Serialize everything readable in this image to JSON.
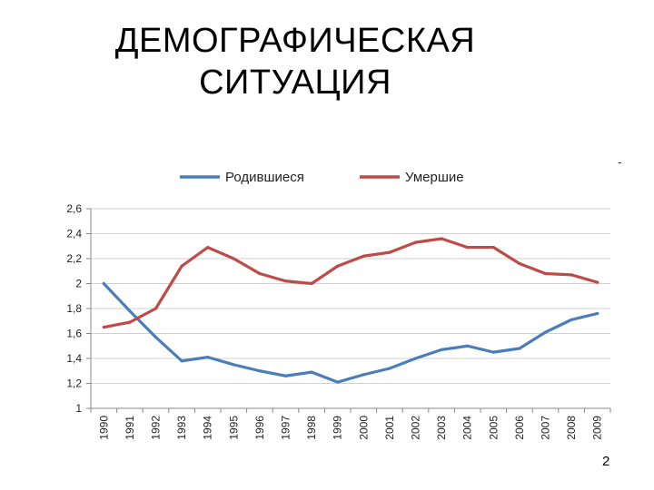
{
  "slide": {
    "title_line1": "ДЕМОГРАФИЧЕСКАЯ",
    "title_line2": "СИТУАЦИЯ",
    "page_number": "2",
    "corner_mark": "-"
  },
  "chart_data": {
    "type": "line",
    "title": "",
    "xlabel": "",
    "ylabel": "",
    "categories": [
      "1990",
      "1991",
      "1992",
      "1993",
      "1994",
      "1995",
      "1996",
      "1997",
      "1998",
      "1999",
      "2000",
      "2001",
      "2002",
      "2003",
      "2004",
      "2005",
      "2006",
      "2007",
      "2008",
      "2009"
    ],
    "yticks": [
      "1",
      "1,2",
      "1,4",
      "1,6",
      "1,8",
      "2",
      "2,2",
      "2,4",
      "2,6"
    ],
    "ylim": [
      1,
      2.6
    ],
    "grid": true,
    "legend_position": "top",
    "series": [
      {
        "name": "Родившиеся",
        "color": "#4a7ebb",
        "values": [
          2.0,
          1.78,
          1.57,
          1.38,
          1.41,
          1.35,
          1.3,
          1.26,
          1.29,
          1.21,
          1.27,
          1.32,
          1.4,
          1.47,
          1.5,
          1.45,
          1.48,
          1.61,
          1.71,
          1.76
        ]
      },
      {
        "name": "Умершие",
        "color": "#be4b48",
        "values": [
          1.65,
          1.69,
          1.8,
          2.14,
          2.29,
          2.2,
          2.08,
          2.02,
          2.0,
          2.14,
          2.22,
          2.25,
          2.33,
          2.36,
          2.29,
          2.29,
          2.16,
          2.08,
          2.07,
          2.01
        ]
      }
    ]
  }
}
